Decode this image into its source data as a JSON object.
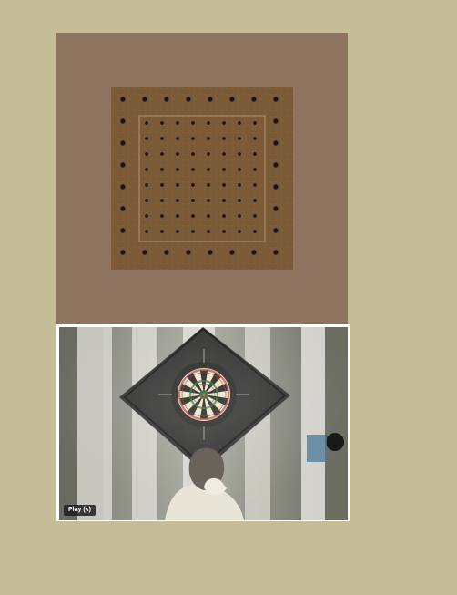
{
  "page": {
    "background_color": "#c5bd98"
  },
  "image_panel": {
    "background_color": "#8f745f",
    "pegboard_color": "#7b5a38",
    "hole_color": "#1b1410"
  },
  "video": {
    "play_button_label": "Play (k)",
    "border_color": "#ffffff"
  },
  "icons": {
    "pegboard": "pegboard-image",
    "dartboard": "dartboard-image"
  }
}
